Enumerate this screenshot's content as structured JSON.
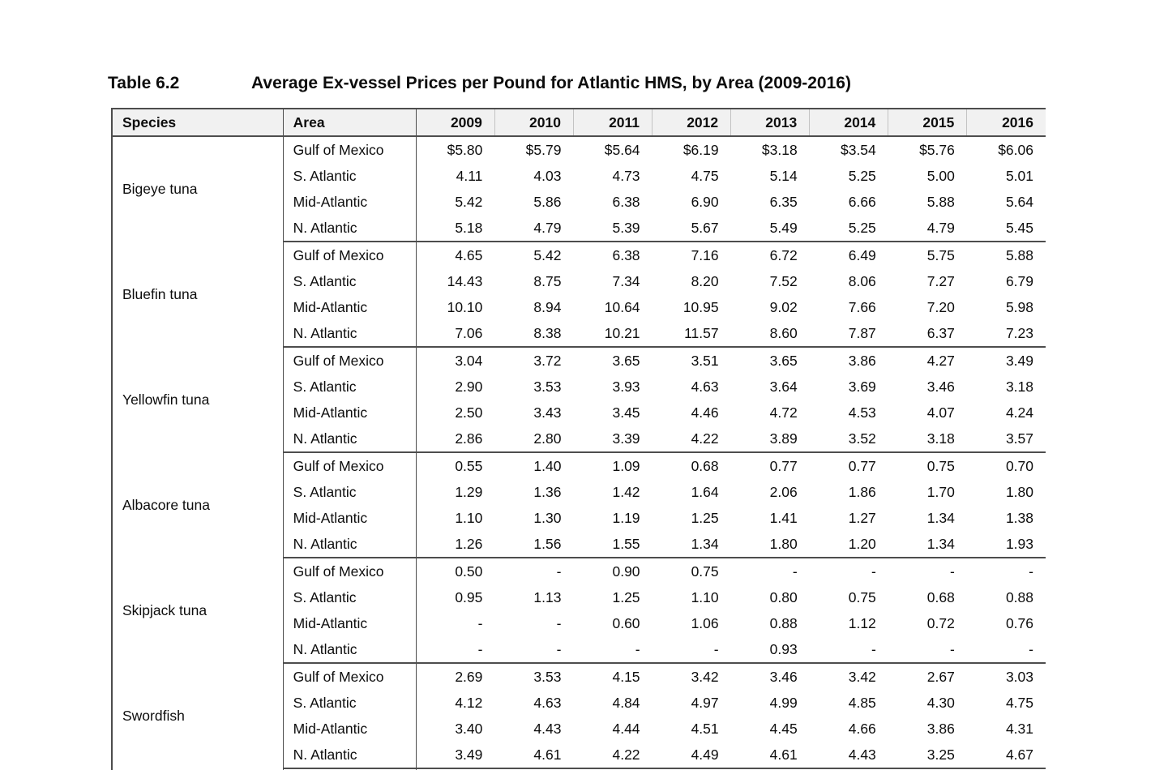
{
  "title": {
    "label": "Table 6.2",
    "text": "Average Ex-vessel Prices per Pound for Atlantic HMS, by Area (2009-2016)"
  },
  "colors": {
    "header_background": "#f1f1f1",
    "border_dark": "#4d4d4d",
    "border_light": "#c3c3c3",
    "text": "#0d0d0d"
  },
  "table": {
    "header": {
      "species": "Species",
      "area": "Area",
      "years": [
        "2009",
        "2010",
        "2011",
        "2012",
        "2013",
        "2014",
        "2015",
        "2016"
      ]
    },
    "groups": [
      {
        "species": "Bigeye tuna",
        "rows": [
          {
            "area": "Gulf of Mexico",
            "values": [
              "$5.80",
              "$5.79",
              "$5.64",
              "$6.19",
              "$3.18",
              "$3.54",
              "$5.76",
              "$6.06"
            ]
          },
          {
            "area": "S. Atlantic",
            "values": [
              "4.11",
              "4.03",
              "4.73",
              "4.75",
              "5.14",
              "5.25",
              "5.00",
              "5.01"
            ]
          },
          {
            "area": "Mid-Atlantic",
            "values": [
              "5.42",
              "5.86",
              "6.38",
              "6.90",
              "6.35",
              "6.66",
              "5.88",
              "5.64"
            ]
          },
          {
            "area": "N. Atlantic",
            "values": [
              "5.18",
              "4.79",
              "5.39",
              "5.67",
              "5.49",
              "5.25",
              "4.79",
              "5.45"
            ]
          }
        ]
      },
      {
        "species": "Bluefin tuna",
        "rows": [
          {
            "area": "Gulf of Mexico",
            "values": [
              "4.65",
              "5.42",
              "6.38",
              "7.16",
              "6.72",
              "6.49",
              "5.75",
              "5.88"
            ]
          },
          {
            "area": "S. Atlantic",
            "values": [
              "14.43",
              "8.75",
              "7.34",
              "8.20",
              "7.52",
              "8.06",
              "7.27",
              "6.79"
            ]
          },
          {
            "area": "Mid-Atlantic",
            "values": [
              "10.10",
              "8.94",
              "10.64",
              "10.95",
              "9.02",
              "7.66",
              "7.20",
              "5.98"
            ]
          },
          {
            "area": "N. Atlantic",
            "values": [
              "7.06",
              "8.38",
              "10.21",
              "11.57",
              "8.60",
              "7.87",
              "6.37",
              "7.23"
            ]
          }
        ]
      },
      {
        "species": "Yellowfin tuna",
        "rows": [
          {
            "area": "Gulf of Mexico",
            "values": [
              "3.04",
              "3.72",
              "3.65",
              "3.51",
              "3.65",
              "3.86",
              "4.27",
              "3.49"
            ]
          },
          {
            "area": "S. Atlantic",
            "values": [
              "2.90",
              "3.53",
              "3.93",
              "4.63",
              "3.64",
              "3.69",
              "3.46",
              "3.18"
            ]
          },
          {
            "area": "Mid-Atlantic",
            "values": [
              "2.50",
              "3.43",
              "3.45",
              "4.46",
              "4.72",
              "4.53",
              "4.07",
              "4.24"
            ]
          },
          {
            "area": "N. Atlantic",
            "values": [
              "2.86",
              "2.80",
              "3.39",
              "4.22",
              "3.89",
              "3.52",
              "3.18",
              "3.57"
            ]
          }
        ]
      },
      {
        "species": "Albacore tuna",
        "rows": [
          {
            "area": "Gulf of Mexico",
            "values": [
              "0.55",
              "1.40",
              "1.09",
              "0.68",
              "0.77",
              "0.77",
              "0.75",
              "0.70"
            ]
          },
          {
            "area": "S. Atlantic",
            "values": [
              "1.29",
              "1.36",
              "1.42",
              "1.64",
              "2.06",
              "1.86",
              "1.70",
              "1.80"
            ]
          },
          {
            "area": "Mid-Atlantic",
            "values": [
              "1.10",
              "1.30",
              "1.19",
              "1.25",
              "1.41",
              "1.27",
              "1.34",
              "1.38"
            ]
          },
          {
            "area": "N. Atlantic",
            "values": [
              "1.26",
              "1.56",
              "1.55",
              "1.34",
              "1.80",
              "1.20",
              "1.34",
              "1.93"
            ]
          }
        ]
      },
      {
        "species": "Skipjack tuna",
        "rows": [
          {
            "area": "Gulf of Mexico",
            "values": [
              "0.50",
              "-",
              "0.90",
              "0.75",
              "-",
              "-",
              "-",
              "-"
            ]
          },
          {
            "area": "S. Atlantic",
            "values": [
              "0.95",
              "1.13",
              "1.25",
              "1.10",
              "0.80",
              "0.75",
              "0.68",
              "0.88"
            ]
          },
          {
            "area": "Mid-Atlantic",
            "values": [
              "-",
              "-",
              "0.60",
              "1.06",
              "0.88",
              "1.12",
              "0.72",
              "0.76"
            ]
          },
          {
            "area": "N. Atlantic",
            "values": [
              "-",
              "-",
              "-",
              "-",
              "0.93",
              "-",
              "-",
              "-"
            ]
          }
        ]
      },
      {
        "species": "Swordfish",
        "rows": [
          {
            "area": "Gulf of Mexico",
            "values": [
              "2.69",
              "3.53",
              "4.15",
              "3.42",
              "3.46",
              "3.42",
              "2.67",
              "3.03"
            ]
          },
          {
            "area": "S. Atlantic",
            "values": [
              "4.12",
              "4.63",
              "4.84",
              "4.97",
              "4.99",
              "4.85",
              "4.30",
              "4.75"
            ]
          },
          {
            "area": "Mid-Atlantic",
            "values": [
              "3.40",
              "4.43",
              "4.44",
              "4.51",
              "4.45",
              "4.66",
              "3.86",
              "4.31"
            ]
          },
          {
            "area": "N. Atlantic",
            "values": [
              "3.49",
              "4.61",
              "4.22",
              "4.49",
              "4.61",
              "4.43",
              "3.25",
              "4.67"
            ]
          }
        ]
      }
    ]
  }
}
